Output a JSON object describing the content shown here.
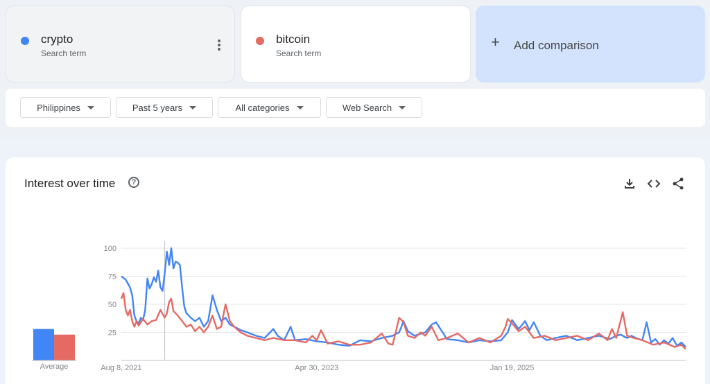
{
  "terms": [
    {
      "name": "crypto",
      "sub": "Search term",
      "color": "#4285f4"
    },
    {
      "name": "bitcoin",
      "sub": "Search term",
      "color": "#e46a63"
    }
  ],
  "add_comparison": {
    "label": "Add comparison"
  },
  "filters": {
    "region": "Philippines",
    "time": "Past 5 years",
    "category": "All categories",
    "property": "Web Search"
  },
  "panel": {
    "title": "Interest over time",
    "average_label": "Average"
  },
  "chart_data": {
    "type": "line",
    "ylim": [
      0,
      100
    ],
    "yticks": [
      25,
      50,
      75,
      100
    ],
    "x_tick_labels": [
      {
        "label": "Aug 8, 2021",
        "index": 0
      },
      {
        "label": "Apr 30, 2023",
        "index": 90
      },
      {
        "label": "Jan 19, 2025",
        "index": 180
      }
    ],
    "weeks": 261,
    "hover_index": 20,
    "averages": [
      {
        "name": "crypto",
        "value": 28
      },
      {
        "name": "bitcoin",
        "value": 23
      }
    ],
    "series": [
      {
        "name": "crypto",
        "color": "#4285f4",
        "keypoints": [
          [
            0,
            75
          ],
          [
            2,
            72
          ],
          [
            4,
            65
          ],
          [
            5,
            58
          ],
          [
            6,
            40
          ],
          [
            7,
            35
          ],
          [
            8,
            33
          ],
          [
            9,
            38
          ],
          [
            10,
            36
          ],
          [
            11,
            45
          ],
          [
            12,
            73
          ],
          [
            13,
            64
          ],
          [
            14,
            68
          ],
          [
            15,
            74
          ],
          [
            16,
            70
          ],
          [
            17,
            80
          ],
          [
            18,
            65
          ],
          [
            19,
            62
          ],
          [
            20,
            78
          ],
          [
            21,
            97
          ],
          [
            22,
            85
          ],
          [
            23,
            100
          ],
          [
            24,
            82
          ],
          [
            25,
            88
          ],
          [
            26,
            87
          ],
          [
            27,
            85
          ],
          [
            28,
            65
          ],
          [
            29,
            48
          ],
          [
            30,
            42
          ],
          [
            32,
            38
          ],
          [
            34,
            35
          ],
          [
            36,
            38
          ],
          [
            38,
            30
          ],
          [
            40,
            35
          ],
          [
            42,
            58
          ],
          [
            44,
            45
          ],
          [
            46,
            35
          ],
          [
            48,
            38
          ],
          [
            50,
            32
          ],
          [
            52,
            30
          ],
          [
            55,
            27
          ],
          [
            58,
            25
          ],
          [
            62,
            22
          ],
          [
            66,
            20
          ],
          [
            70,
            28
          ],
          [
            72,
            22
          ],
          [
            75,
            18
          ],
          [
            78,
            30
          ],
          [
            80,
            18
          ],
          [
            85,
            19
          ],
          [
            90,
            17
          ],
          [
            95,
            16
          ],
          [
            100,
            14
          ],
          [
            105,
            13
          ],
          [
            110,
            18
          ],
          [
            115,
            17
          ],
          [
            120,
            20
          ],
          [
            125,
            22
          ],
          [
            128,
            25
          ],
          [
            130,
            35
          ],
          [
            132,
            26
          ],
          [
            135,
            22
          ],
          [
            140,
            25
          ],
          [
            143,
            32
          ],
          [
            145,
            34
          ],
          [
            147,
            28
          ],
          [
            150,
            19
          ],
          [
            155,
            18
          ],
          [
            160,
            16
          ],
          [
            165,
            18
          ],
          [
            170,
            17
          ],
          [
            175,
            18
          ],
          [
            178,
            25
          ],
          [
            180,
            36
          ],
          [
            183,
            28
          ],
          [
            186,
            35
          ],
          [
            188,
            27
          ],
          [
            190,
            34
          ],
          [
            193,
            22
          ],
          [
            196,
            18
          ],
          [
            200,
            20
          ],
          [
            205,
            22
          ],
          [
            210,
            18
          ],
          [
            215,
            20
          ],
          [
            220,
            22
          ],
          [
            225,
            19
          ],
          [
            228,
            22
          ],
          [
            230,
            23
          ],
          [
            233,
            20
          ],
          [
            235,
            22
          ],
          [
            237,
            20
          ],
          [
            240,
            18
          ],
          [
            242,
            34
          ],
          [
            244,
            16
          ],
          [
            246,
            19
          ],
          [
            248,
            14
          ],
          [
            250,
            18
          ],
          [
            252,
            15
          ],
          [
            254,
            20
          ],
          [
            256,
            13
          ],
          [
            258,
            16
          ],
          [
            260,
            12
          ]
        ]
      },
      {
        "name": "bitcoin",
        "color": "#e46a63",
        "keypoints": [
          [
            0,
            55
          ],
          [
            1,
            60
          ],
          [
            2,
            45
          ],
          [
            3,
            40
          ],
          [
            4,
            45
          ],
          [
            5,
            35
          ],
          [
            6,
            30
          ],
          [
            7,
            35
          ],
          [
            8,
            31
          ],
          [
            10,
            37
          ],
          [
            12,
            32
          ],
          [
            14,
            35
          ],
          [
            16,
            36
          ],
          [
            18,
            45
          ],
          [
            20,
            38
          ],
          [
            21,
            42
          ],
          [
            22,
            52
          ],
          [
            23,
            55
          ],
          [
            24,
            44
          ],
          [
            26,
            40
          ],
          [
            28,
            35
          ],
          [
            30,
            30
          ],
          [
            32,
            32
          ],
          [
            34,
            26
          ],
          [
            36,
            30
          ],
          [
            38,
            25
          ],
          [
            40,
            30
          ],
          [
            42,
            40
          ],
          [
            44,
            28
          ],
          [
            46,
            30
          ],
          [
            48,
            50
          ],
          [
            50,
            35
          ],
          [
            52,
            30
          ],
          [
            55,
            25
          ],
          [
            58,
            22
          ],
          [
            62,
            20
          ],
          [
            66,
            18
          ],
          [
            70,
            20
          ],
          [
            75,
            18
          ],
          [
            80,
            18
          ],
          [
            85,
            16
          ],
          [
            88,
            22
          ],
          [
            90,
            18
          ],
          [
            92,
            27
          ],
          [
            95,
            15
          ],
          [
            100,
            17
          ],
          [
            105,
            14
          ],
          [
            110,
            14
          ],
          [
            115,
            16
          ],
          [
            120,
            24
          ],
          [
            123,
            15
          ],
          [
            125,
            14
          ],
          [
            128,
            38
          ],
          [
            130,
            34
          ],
          [
            132,
            22
          ],
          [
            135,
            20
          ],
          [
            138,
            25
          ],
          [
            140,
            22
          ],
          [
            143,
            30
          ],
          [
            146,
            18
          ],
          [
            150,
            20
          ],
          [
            155,
            24
          ],
          [
            160,
            16
          ],
          [
            165,
            20
          ],
          [
            170,
            16
          ],
          [
            175,
            22
          ],
          [
            177,
            30
          ],
          [
            178,
            37
          ],
          [
            180,
            33
          ],
          [
            183,
            26
          ],
          [
            186,
            30
          ],
          [
            188,
            25
          ],
          [
            190,
            20
          ],
          [
            195,
            22
          ],
          [
            200,
            18
          ],
          [
            205,
            20
          ],
          [
            210,
            22
          ],
          [
            215,
            18
          ],
          [
            220,
            24
          ],
          [
            224,
            18
          ],
          [
            226,
            28
          ],
          [
            228,
            20
          ],
          [
            231,
            43
          ],
          [
            233,
            22
          ],
          [
            236,
            20
          ],
          [
            240,
            18
          ],
          [
            245,
            14
          ],
          [
            250,
            16
          ],
          [
            255,
            12
          ],
          [
            258,
            14
          ],
          [
            260,
            10
          ]
        ]
      }
    ]
  }
}
